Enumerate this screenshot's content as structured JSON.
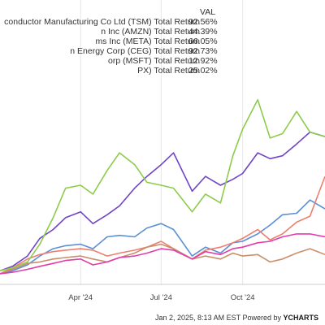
{
  "chart_data": {
    "type": "line",
    "title": "",
    "legend_header": "VAL",
    "legend_position": "top-left",
    "x_ticks": [
      "Apr '24",
      "Jul '24",
      "Oct '24"
    ],
    "x_range": [
      "2024-01-01",
      "2025-01-02"
    ],
    "y_range": [
      -0.05,
      1.25
    ],
    "grid": "vertical",
    "series": [
      {
        "name": "conductor Manufacturing Co Ltd (TSM) Total Return",
        "value": "92.56%",
        "color": "#6f44c6",
        "points": [
          [
            "2024-01-01",
            0.02
          ],
          [
            "2024-01-15",
            0.05
          ],
          [
            "2024-02-01",
            0.12
          ],
          [
            "2024-02-15",
            0.24
          ],
          [
            "2024-03-01",
            0.3
          ],
          [
            "2024-03-15",
            0.38
          ],
          [
            "2024-04-01",
            0.42
          ],
          [
            "2024-04-15",
            0.34
          ],
          [
            "2024-05-01",
            0.4
          ],
          [
            "2024-05-15",
            0.46
          ],
          [
            "2024-06-01",
            0.58
          ],
          [
            "2024-06-15",
            0.66
          ],
          [
            "2024-07-01",
            0.74
          ],
          [
            "2024-07-15",
            0.82
          ],
          [
            "2024-08-05",
            0.56
          ],
          [
            "2024-08-20",
            0.66
          ],
          [
            "2024-09-06",
            0.6
          ],
          [
            "2024-09-20",
            0.64
          ],
          [
            "2024-10-01",
            0.68
          ],
          [
            "2024-10-18",
            0.82
          ],
          [
            "2024-11-01",
            0.78
          ],
          [
            "2024-11-15",
            0.8
          ],
          [
            "2024-12-01",
            0.88
          ],
          [
            "2024-12-16",
            0.96
          ],
          [
            "2025-01-02",
            0.93
          ]
        ]
      },
      {
        "name": "n Inc (AMZN) Total Return",
        "value": "44.39%",
        "color": "#5b8fd6",
        "points": [
          [
            "2024-01-01",
            0.0
          ],
          [
            "2024-01-15",
            0.02
          ],
          [
            "2024-02-01",
            0.06
          ],
          [
            "2024-02-15",
            0.12
          ],
          [
            "2024-03-01",
            0.17
          ],
          [
            "2024-03-15",
            0.19
          ],
          [
            "2024-04-01",
            0.2
          ],
          [
            "2024-04-15",
            0.17
          ],
          [
            "2024-05-01",
            0.25
          ],
          [
            "2024-05-15",
            0.26
          ],
          [
            "2024-06-01",
            0.25
          ],
          [
            "2024-06-15",
            0.31
          ],
          [
            "2024-07-01",
            0.34
          ],
          [
            "2024-07-15",
            0.3
          ],
          [
            "2024-08-05",
            0.12
          ],
          [
            "2024-08-20",
            0.18
          ],
          [
            "2024-09-06",
            0.14
          ],
          [
            "2024-09-20",
            0.21
          ],
          [
            "2024-10-01",
            0.22
          ],
          [
            "2024-10-18",
            0.27
          ],
          [
            "2024-11-01",
            0.33
          ],
          [
            "2024-11-15",
            0.4
          ],
          [
            "2024-12-01",
            0.41
          ],
          [
            "2024-12-16",
            0.5
          ],
          [
            "2025-01-02",
            0.44
          ]
        ]
      },
      {
        "name": "ms Inc (META) Total Return",
        "value": "66.05%",
        "color": "#ee7f70",
        "points": [
          [
            "2024-01-01",
            0.0
          ],
          [
            "2024-01-15",
            0.04
          ],
          [
            "2024-02-01",
            0.1
          ],
          [
            "2024-02-15",
            0.13
          ],
          [
            "2024-03-01",
            0.15
          ],
          [
            "2024-03-15",
            0.16
          ],
          [
            "2024-04-01",
            0.17
          ],
          [
            "2024-04-15",
            0.16
          ],
          [
            "2024-05-01",
            0.12
          ],
          [
            "2024-05-15",
            0.14
          ],
          [
            "2024-06-01",
            0.16
          ],
          [
            "2024-06-15",
            0.18
          ],
          [
            "2024-07-01",
            0.22
          ],
          [
            "2024-07-15",
            0.17
          ],
          [
            "2024-08-05",
            0.1
          ],
          [
            "2024-08-20",
            0.16
          ],
          [
            "2024-09-06",
            0.18
          ],
          [
            "2024-09-20",
            0.21
          ],
          [
            "2024-10-01",
            0.24
          ],
          [
            "2024-10-18",
            0.3
          ],
          [
            "2024-11-01",
            0.23
          ],
          [
            "2024-11-15",
            0.27
          ],
          [
            "2024-12-01",
            0.35
          ],
          [
            "2024-12-16",
            0.39
          ],
          [
            "2025-01-02",
            0.66
          ]
        ]
      },
      {
        "name": "n Energy Corp (CEG) Total Return",
        "value": "92.73%",
        "color": "#8ccc4a",
        "points": [
          [
            "2024-01-01",
            0.02
          ],
          [
            "2024-01-15",
            0.04
          ],
          [
            "2024-02-01",
            0.08
          ],
          [
            "2024-02-15",
            0.2
          ],
          [
            "2024-03-01",
            0.38
          ],
          [
            "2024-03-15",
            0.58
          ],
          [
            "2024-04-01",
            0.6
          ],
          [
            "2024-04-15",
            0.54
          ],
          [
            "2024-05-01",
            0.7
          ],
          [
            "2024-05-15",
            0.82
          ],
          [
            "2024-06-01",
            0.74
          ],
          [
            "2024-06-15",
            0.62
          ],
          [
            "2024-07-01",
            0.6
          ],
          [
            "2024-07-15",
            0.58
          ],
          [
            "2024-08-05",
            0.42
          ],
          [
            "2024-08-20",
            0.54
          ],
          [
            "2024-09-06",
            0.48
          ],
          [
            "2024-09-20",
            0.8
          ],
          [
            "2024-10-01",
            0.98
          ],
          [
            "2024-10-18",
            1.18
          ],
          [
            "2024-11-01",
            0.92
          ],
          [
            "2024-11-15",
            0.95
          ],
          [
            "2024-12-01",
            1.1
          ],
          [
            "2024-12-16",
            0.96
          ],
          [
            "2025-01-02",
            0.93
          ]
        ]
      },
      {
        "name": "orp (MSFT) Total Return",
        "value": "12.92%",
        "color": "#c98e6a",
        "points": [
          [
            "2024-01-01",
            0.0
          ],
          [
            "2024-01-15",
            0.03
          ],
          [
            "2024-02-01",
            0.07
          ],
          [
            "2024-02-15",
            0.08
          ],
          [
            "2024-03-01",
            0.1
          ],
          [
            "2024-03-15",
            0.11
          ],
          [
            "2024-04-01",
            0.12
          ],
          [
            "2024-04-15",
            0.1
          ],
          [
            "2024-05-01",
            0.08
          ],
          [
            "2024-05-15",
            0.11
          ],
          [
            "2024-06-01",
            0.14
          ],
          [
            "2024-06-15",
            0.18
          ],
          [
            "2024-07-01",
            0.2
          ],
          [
            "2024-07-15",
            0.17
          ],
          [
            "2024-08-05",
            0.1
          ],
          [
            "2024-08-20",
            0.12
          ],
          [
            "2024-09-06",
            0.1
          ],
          [
            "2024-09-20",
            0.14
          ],
          [
            "2024-10-01",
            0.12
          ],
          [
            "2024-10-18",
            0.13
          ],
          [
            "2024-11-01",
            0.08
          ],
          [
            "2024-11-15",
            0.1
          ],
          [
            "2024-12-01",
            0.14
          ],
          [
            "2024-12-16",
            0.17
          ],
          [
            "2025-01-02",
            0.13
          ]
        ]
      },
      {
        "name": "PX) Total Return",
        "value": "25.02%",
        "color": "#e03caa",
        "points": [
          [
            "2024-01-01",
            0.0
          ],
          [
            "2024-01-15",
            0.01
          ],
          [
            "2024-02-01",
            0.03
          ],
          [
            "2024-02-15",
            0.05
          ],
          [
            "2024-03-01",
            0.07
          ],
          [
            "2024-03-15",
            0.09
          ],
          [
            "2024-04-01",
            0.1
          ],
          [
            "2024-04-15",
            0.06
          ],
          [
            "2024-05-01",
            0.08
          ],
          [
            "2024-05-15",
            0.11
          ],
          [
            "2024-06-01",
            0.12
          ],
          [
            "2024-06-15",
            0.14
          ],
          [
            "2024-07-01",
            0.17
          ],
          [
            "2024-07-15",
            0.16
          ],
          [
            "2024-08-05",
            0.1
          ],
          [
            "2024-08-20",
            0.15
          ],
          [
            "2024-09-06",
            0.13
          ],
          [
            "2024-09-20",
            0.17
          ],
          [
            "2024-10-01",
            0.18
          ],
          [
            "2024-10-18",
            0.21
          ],
          [
            "2024-11-01",
            0.22
          ],
          [
            "2024-11-15",
            0.25
          ],
          [
            "2024-12-01",
            0.27
          ],
          [
            "2024-12-16",
            0.27
          ],
          [
            "2025-01-02",
            0.25
          ]
        ]
      }
    ]
  },
  "footer": {
    "timestamp": "Jan 2, 2025, 8:13 AM EST",
    "powered_by": "Powered by",
    "brand": "YCHARTS"
  }
}
